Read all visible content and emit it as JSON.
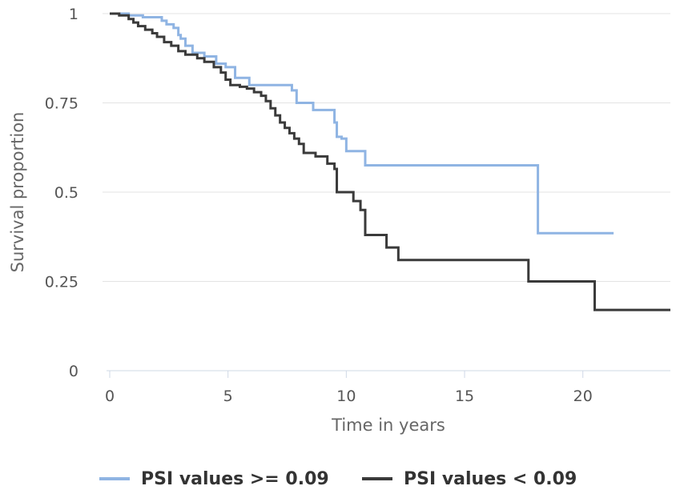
{
  "chart_data": {
    "type": "line",
    "xlabel": "Time in years",
    "ylabel": "Survival proportion",
    "xlim": [
      0,
      23.7
    ],
    "ylim": [
      0,
      1
    ],
    "x_ticks": [
      0,
      5,
      10,
      15,
      20
    ],
    "y_ticks": [
      0,
      0.25,
      0.5,
      0.75,
      1
    ],
    "y_tick_labels": [
      "0",
      "0.25",
      "0.5",
      "0.75",
      "1"
    ],
    "grid": "horizontal",
    "legend_position": "bottom",
    "series": [
      {
        "name": "PSI values >= 0.09",
        "color": "#8fb4e3",
        "points": [
          [
            0,
            1
          ],
          [
            0.8,
            0.995
          ],
          [
            1.4,
            0.99
          ],
          [
            2.2,
            0.98
          ],
          [
            2.4,
            0.97
          ],
          [
            2.7,
            0.96
          ],
          [
            2.9,
            0.94
          ],
          [
            3.0,
            0.93
          ],
          [
            3.2,
            0.91
          ],
          [
            3.5,
            0.89
          ],
          [
            4.0,
            0.88
          ],
          [
            4.5,
            0.86
          ],
          [
            4.9,
            0.85
          ],
          [
            5.3,
            0.82
          ],
          [
            5.9,
            0.8
          ],
          [
            7.7,
            0.785
          ],
          [
            7.9,
            0.75
          ],
          [
            8.6,
            0.73
          ],
          [
            9.5,
            0.695
          ],
          [
            9.6,
            0.655
          ],
          [
            9.8,
            0.65
          ],
          [
            10.0,
            0.615
          ],
          [
            10.8,
            0.575
          ],
          [
            18.0,
            0.575
          ],
          [
            18.1,
            0.385
          ],
          [
            21.3,
            0.385
          ]
        ]
      },
      {
        "name": "PSI values < 0.09",
        "color": "#3a3a3a",
        "points": [
          [
            0,
            1
          ],
          [
            0.4,
            0.995
          ],
          [
            0.8,
            0.985
          ],
          [
            1.0,
            0.975
          ],
          [
            1.2,
            0.965
          ],
          [
            1.5,
            0.955
          ],
          [
            1.8,
            0.945
          ],
          [
            2.0,
            0.935
          ],
          [
            2.3,
            0.92
          ],
          [
            2.6,
            0.91
          ],
          [
            2.9,
            0.895
          ],
          [
            3.2,
            0.885
          ],
          [
            3.7,
            0.875
          ],
          [
            4.0,
            0.865
          ],
          [
            4.4,
            0.85
          ],
          [
            4.7,
            0.835
          ],
          [
            4.9,
            0.815
          ],
          [
            5.1,
            0.8
          ],
          [
            5.5,
            0.795
          ],
          [
            5.8,
            0.79
          ],
          [
            6.1,
            0.78
          ],
          [
            6.4,
            0.77
          ],
          [
            6.6,
            0.755
          ],
          [
            6.8,
            0.735
          ],
          [
            7.0,
            0.715
          ],
          [
            7.2,
            0.695
          ],
          [
            7.4,
            0.68
          ],
          [
            7.6,
            0.665
          ],
          [
            7.8,
            0.65
          ],
          [
            8.0,
            0.635
          ],
          [
            8.2,
            0.61
          ],
          [
            8.7,
            0.6
          ],
          [
            9.2,
            0.58
          ],
          [
            9.5,
            0.565
          ],
          [
            9.6,
            0.5
          ],
          [
            10.3,
            0.475
          ],
          [
            10.6,
            0.45
          ],
          [
            10.8,
            0.38
          ],
          [
            11.7,
            0.345
          ],
          [
            12.2,
            0.31
          ],
          [
            17.7,
            0.25
          ],
          [
            20.5,
            0.17
          ],
          [
            23.7,
            0.17
          ]
        ]
      }
    ]
  }
}
